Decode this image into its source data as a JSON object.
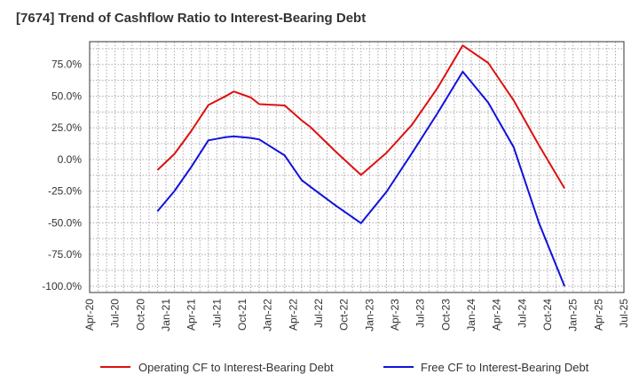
{
  "chart_data": {
    "type": "line",
    "title": "[7674]  Trend of Cashflow Ratio to Interest-Bearing Debt",
    "xlabel": "",
    "ylabel": "",
    "x_ticks": [
      "Apr-20",
      "Jul-20",
      "Oct-20",
      "Jan-21",
      "Apr-21",
      "Jul-21",
      "Oct-21",
      "Jan-22",
      "Apr-22",
      "Jul-22",
      "Oct-22",
      "Jan-23",
      "Apr-23",
      "Jul-23",
      "Oct-23",
      "Jan-24",
      "Apr-24",
      "Jul-24",
      "Oct-24",
      "Jan-25",
      "Apr-25",
      "Jul-25"
    ],
    "y_ticks": [
      "75.0%",
      "50.0%",
      "25.0%",
      "0.0%",
      "-25.0%",
      "-50.0%",
      "-75.0%",
      "-100.0%"
    ],
    "y_tick_values": [
      75,
      50,
      25,
      0,
      -25,
      -50,
      -75,
      -100
    ],
    "ylim": [
      -105,
      93
    ],
    "grid": true,
    "legend_position": "bottom",
    "series": [
      {
        "name": "Operating CF to Interest-Bearing Debt",
        "color": "#dd1111",
        "x": [
          "Dec-20",
          "Feb-21",
          "Apr-21",
          "Jun-21",
          "Aug-21",
          "Sep-21",
          "Nov-21",
          "Dec-21",
          "Mar-22",
          "May-22",
          "Jun-22",
          "Sep-22",
          "Dec-22",
          "Mar-23",
          "Jun-23",
          "Sep-23",
          "Dec-23",
          "Mar-24",
          "Jun-24",
          "Sep-24",
          "Dec-24"
        ],
        "values": [
          -8.4,
          4.4,
          22.7,
          43.0,
          49.8,
          53.7,
          48.9,
          43.7,
          42.6,
          30.9,
          25.8,
          6.3,
          -12.2,
          5.2,
          27.3,
          56.3,
          90.0,
          76.2,
          46.6,
          11.1,
          -22.8
        ]
      },
      {
        "name": "Free CF to Interest-Bearing Debt",
        "color": "#1111dd",
        "x": [
          "Dec-20",
          "Feb-21",
          "Apr-21",
          "Jun-21",
          "Aug-21",
          "Sep-21",
          "Nov-21",
          "Dec-21",
          "Mar-22",
          "May-22",
          "Jun-22",
          "Sep-22",
          "Dec-22",
          "Mar-23",
          "Jun-23",
          "Sep-23",
          "Dec-23",
          "Mar-24",
          "Jun-24",
          "Sep-24",
          "Dec-24"
        ],
        "values": [
          -40.9,
          -24.9,
          -5.7,
          15.1,
          17.6,
          18.2,
          17.0,
          15.8,
          3.2,
          -16.3,
          -21.3,
          -36.3,
          -50.3,
          -25.6,
          4.9,
          36.3,
          69.3,
          44.9,
          9.7,
          -50.3,
          -100.0
        ]
      }
    ]
  }
}
